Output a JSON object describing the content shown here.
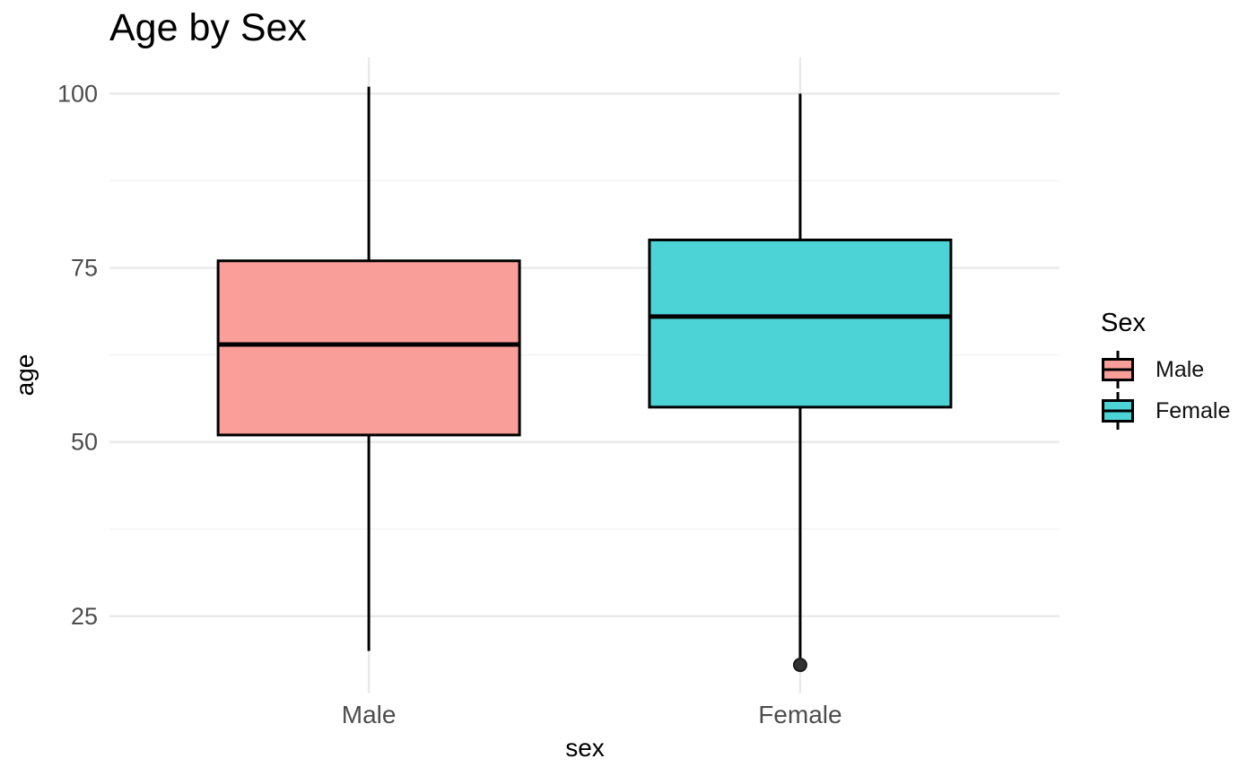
{
  "chart_data": {
    "type": "boxplot",
    "title": "Age by Sex",
    "xlabel": "sex",
    "ylabel": "age",
    "categories": [
      "Male",
      "Female"
    ],
    "yticks": [
      25,
      50,
      75,
      100
    ],
    "minor_ticks": [
      37.5,
      62.5,
      87.5
    ],
    "ylim": [
      13.9,
      105.2
    ],
    "grid": true,
    "legend_position": "right",
    "series": [
      {
        "name": "Male",
        "color": "#FA9E99",
        "whisker_low": 20,
        "q1": 51,
        "median": 64,
        "q3": 76,
        "whisker_high": 101,
        "outliers": []
      },
      {
        "name": "Female",
        "color": "#4CD3D6",
        "whisker_low": 19,
        "q1": 55,
        "median": 68,
        "q3": 79,
        "whisker_high": 100,
        "outliers": [
          18
        ]
      }
    ],
    "legend": {
      "title": "Sex",
      "items": [
        {
          "label": "Male",
          "color": "#FA9E99"
        },
        {
          "label": "Female",
          "color": "#4CD3D6"
        }
      ]
    },
    "colors": {
      "box_stroke": "#000000",
      "tick_label": "#4D4D4D",
      "grid_major": "#E9E9E9",
      "grid_minor": "#F4F4F4",
      "outlier": "#333333"
    }
  }
}
